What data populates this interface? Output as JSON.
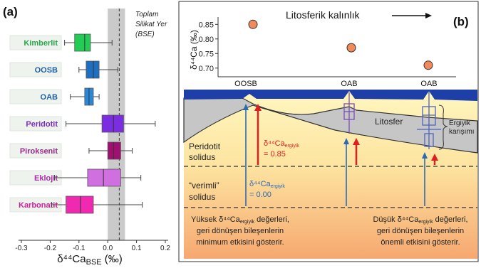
{
  "panel_a": {
    "label": "(a)",
    "bse_label_lines": [
      "Toplam",
      "Silikat Yer",
      "(BSE)"
    ],
    "xlabel_main": "δ⁴⁴Ca",
    "xlabel_sub": "BSE",
    "xlabel_unit": " (‰)"
  },
  "panel_b": {
    "label": "(b)",
    "lith_label": "Litosferik kalınlık",
    "ylabel_main": "δ⁴⁴Ca",
    "ylabel_unit": " (‰)",
    "sites": [
      "OOSB",
      "OAB",
      "OAB"
    ],
    "litosfer": "Litosfer",
    "ergiyik_lines": [
      "Ergiyik",
      "karışımı"
    ],
    "peridotit_lines": [
      "Peridotit",
      "solidus"
    ],
    "verimli_lines": [
      "“verimli”",
      "solidus"
    ],
    "red_formula_main": "δ⁴⁴Ca",
    "red_formula_sub": "ergiyik",
    "red_formula_val": "= 0.85",
    "blue_formula_main": "δ⁴⁴Ca",
    "blue_formula_sub": "ergiyik",
    "blue_formula_val": "= 0.00",
    "left_note_line1_a": "Yüksek δ⁴⁴Ca",
    "left_note_line1_sub": "ergiyik",
    "left_note_line1_b": " değerleri,",
    "left_note_line2": "geri dönüşen bileşenlerin",
    "left_note_line3": "minimum etkisini gösterir.",
    "right_note_line1_a": "Düşük δ⁴⁴Ca",
    "right_note_line1_sub": "ergiyik",
    "right_note_line1_b": " değerleri,",
    "right_note_line2": "geri dönüşen bileşenlerin",
    "right_note_line3": "önemli etkisini gösterir."
  },
  "colors": {
    "red": "#e02020",
    "blue": "#2a6bb5",
    "crust": "#1f3aa0",
    "lithosphere": "#c8c8c8",
    "point_fill": "#f08a5a"
  },
  "chart_data": [
    {
      "type": "box",
      "xlim": [
        -0.3,
        0.2
      ],
      "xticks": [
        -0.3,
        -0.2,
        -0.1,
        0.0,
        0.1,
        0.2
      ],
      "xtick_labels": [
        "-0.3",
        "-0.2",
        "-0.1",
        "0.0",
        "0.1",
        "0.2"
      ],
      "bse_band": [
        0.0,
        0.06
      ],
      "bse_line": 0.04,
      "categories": [
        {
          "name": "Kimberlit",
          "whisker_low": -0.15,
          "q1": -0.115,
          "median": -0.08,
          "q3": -0.06,
          "whisker_high": 0.015,
          "color": "#22cc55",
          "label_color": "#2aa84a"
        },
        {
          "name": "OOSB",
          "whisker_low": -0.1,
          "q1": -0.075,
          "median": -0.05,
          "q3": -0.03,
          "whisker_high": 0.035,
          "color": "#1f6fc0",
          "label_color": "#1f5fa8"
        },
        {
          "name": "OAB",
          "whisker_low": -0.13,
          "q1": -0.08,
          "median": -0.065,
          "q3": -0.05,
          "whisker_high": -0.03,
          "color": "#2a88d8",
          "label_color": "#1f5fa8"
        },
        {
          "name": "Peridotit",
          "whisker_low": -0.145,
          "q1": -0.02,
          "median": 0.02,
          "q3": 0.055,
          "whisker_high": 0.165,
          "color": "#7a2ee0",
          "label_color": "#7a2ec0"
        },
        {
          "name": "Piroksenit",
          "whisker_low": -0.065,
          "q1": 0.0,
          "median": 0.02,
          "q3": 0.045,
          "whisker_high": 0.085,
          "color": "#a01070",
          "label_color": "#9a2a8a"
        },
        {
          "name": "Eklojit",
          "whisker_low": -0.185,
          "q1": -0.07,
          "median": -0.015,
          "q3": 0.045,
          "whisker_high": 0.115,
          "color": "#d070e0",
          "label_color": "#b02ab0"
        },
        {
          "name": "Karbonatit",
          "whisker_low": -0.195,
          "q1": -0.145,
          "median": -0.095,
          "q3": -0.05,
          "whisker_high": 0.12,
          "color": "#f02ab0",
          "label_color": "#d0209a"
        }
      ]
    },
    {
      "type": "scatter",
      "categories": [
        "OOSB",
        "OAB",
        "OAB"
      ],
      "values": [
        0.85,
        0.77,
        0.71
      ],
      "ylim": [
        0.68,
        0.88
      ],
      "yticks": [
        0.7,
        0.75,
        0.8,
        0.85
      ],
      "ytick_labels": [
        "0.70",
        "0.75",
        "0.80",
        "0.85"
      ]
    }
  ]
}
